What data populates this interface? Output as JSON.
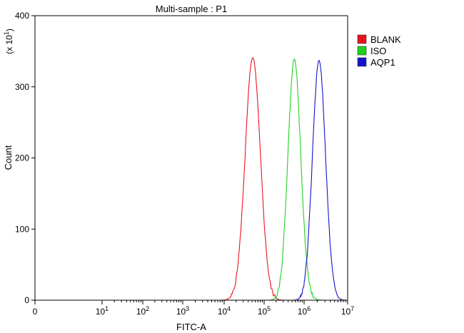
{
  "chart_data": {
    "type": "histogram",
    "title": "Multi-sample : P1",
    "xlabel": "FITC-A",
    "ylabel": "Count",
    "y_multiplier_label": "(x 10",
    "y_multiplier_exp": "1",
    "x_scale": "log",
    "xlim": [
      0,
      10000000
    ],
    "ylim": [
      0,
      400
    ],
    "y_ticks": [
      0,
      100,
      200,
      300,
      400
    ],
    "x_ticks": [
      {
        "value": 0,
        "base": "0",
        "exp": ""
      },
      {
        "value": 10,
        "base": "10",
        "exp": "1"
      },
      {
        "value": 100,
        "base": "10",
        "exp": "2"
      },
      {
        "value": 1000,
        "base": "10",
        "exp": "3"
      },
      {
        "value": 10000,
        "base": "10",
        "exp": "4"
      },
      {
        "value": 100000,
        "base": "10",
        "exp": "5"
      },
      {
        "value": 1000000,
        "base": "10",
        "exp": "6"
      },
      {
        "value": 10000000,
        "base": "10",
        "exp": "7"
      }
    ],
    "legend_position": "right",
    "series": [
      {
        "name": "BLANK",
        "color": "#e8141c",
        "peak_x": 52000,
        "peak_y": 341,
        "spread_log": 0.19
      },
      {
        "name": "ISO",
        "color": "#1ed21e",
        "peak_x": 570000,
        "peak_y": 339,
        "spread_log": 0.16
      },
      {
        "name": "AQP1",
        "color": "#1414cc",
        "peak_x": 2200000,
        "peak_y": 337,
        "spread_log": 0.15
      }
    ]
  }
}
